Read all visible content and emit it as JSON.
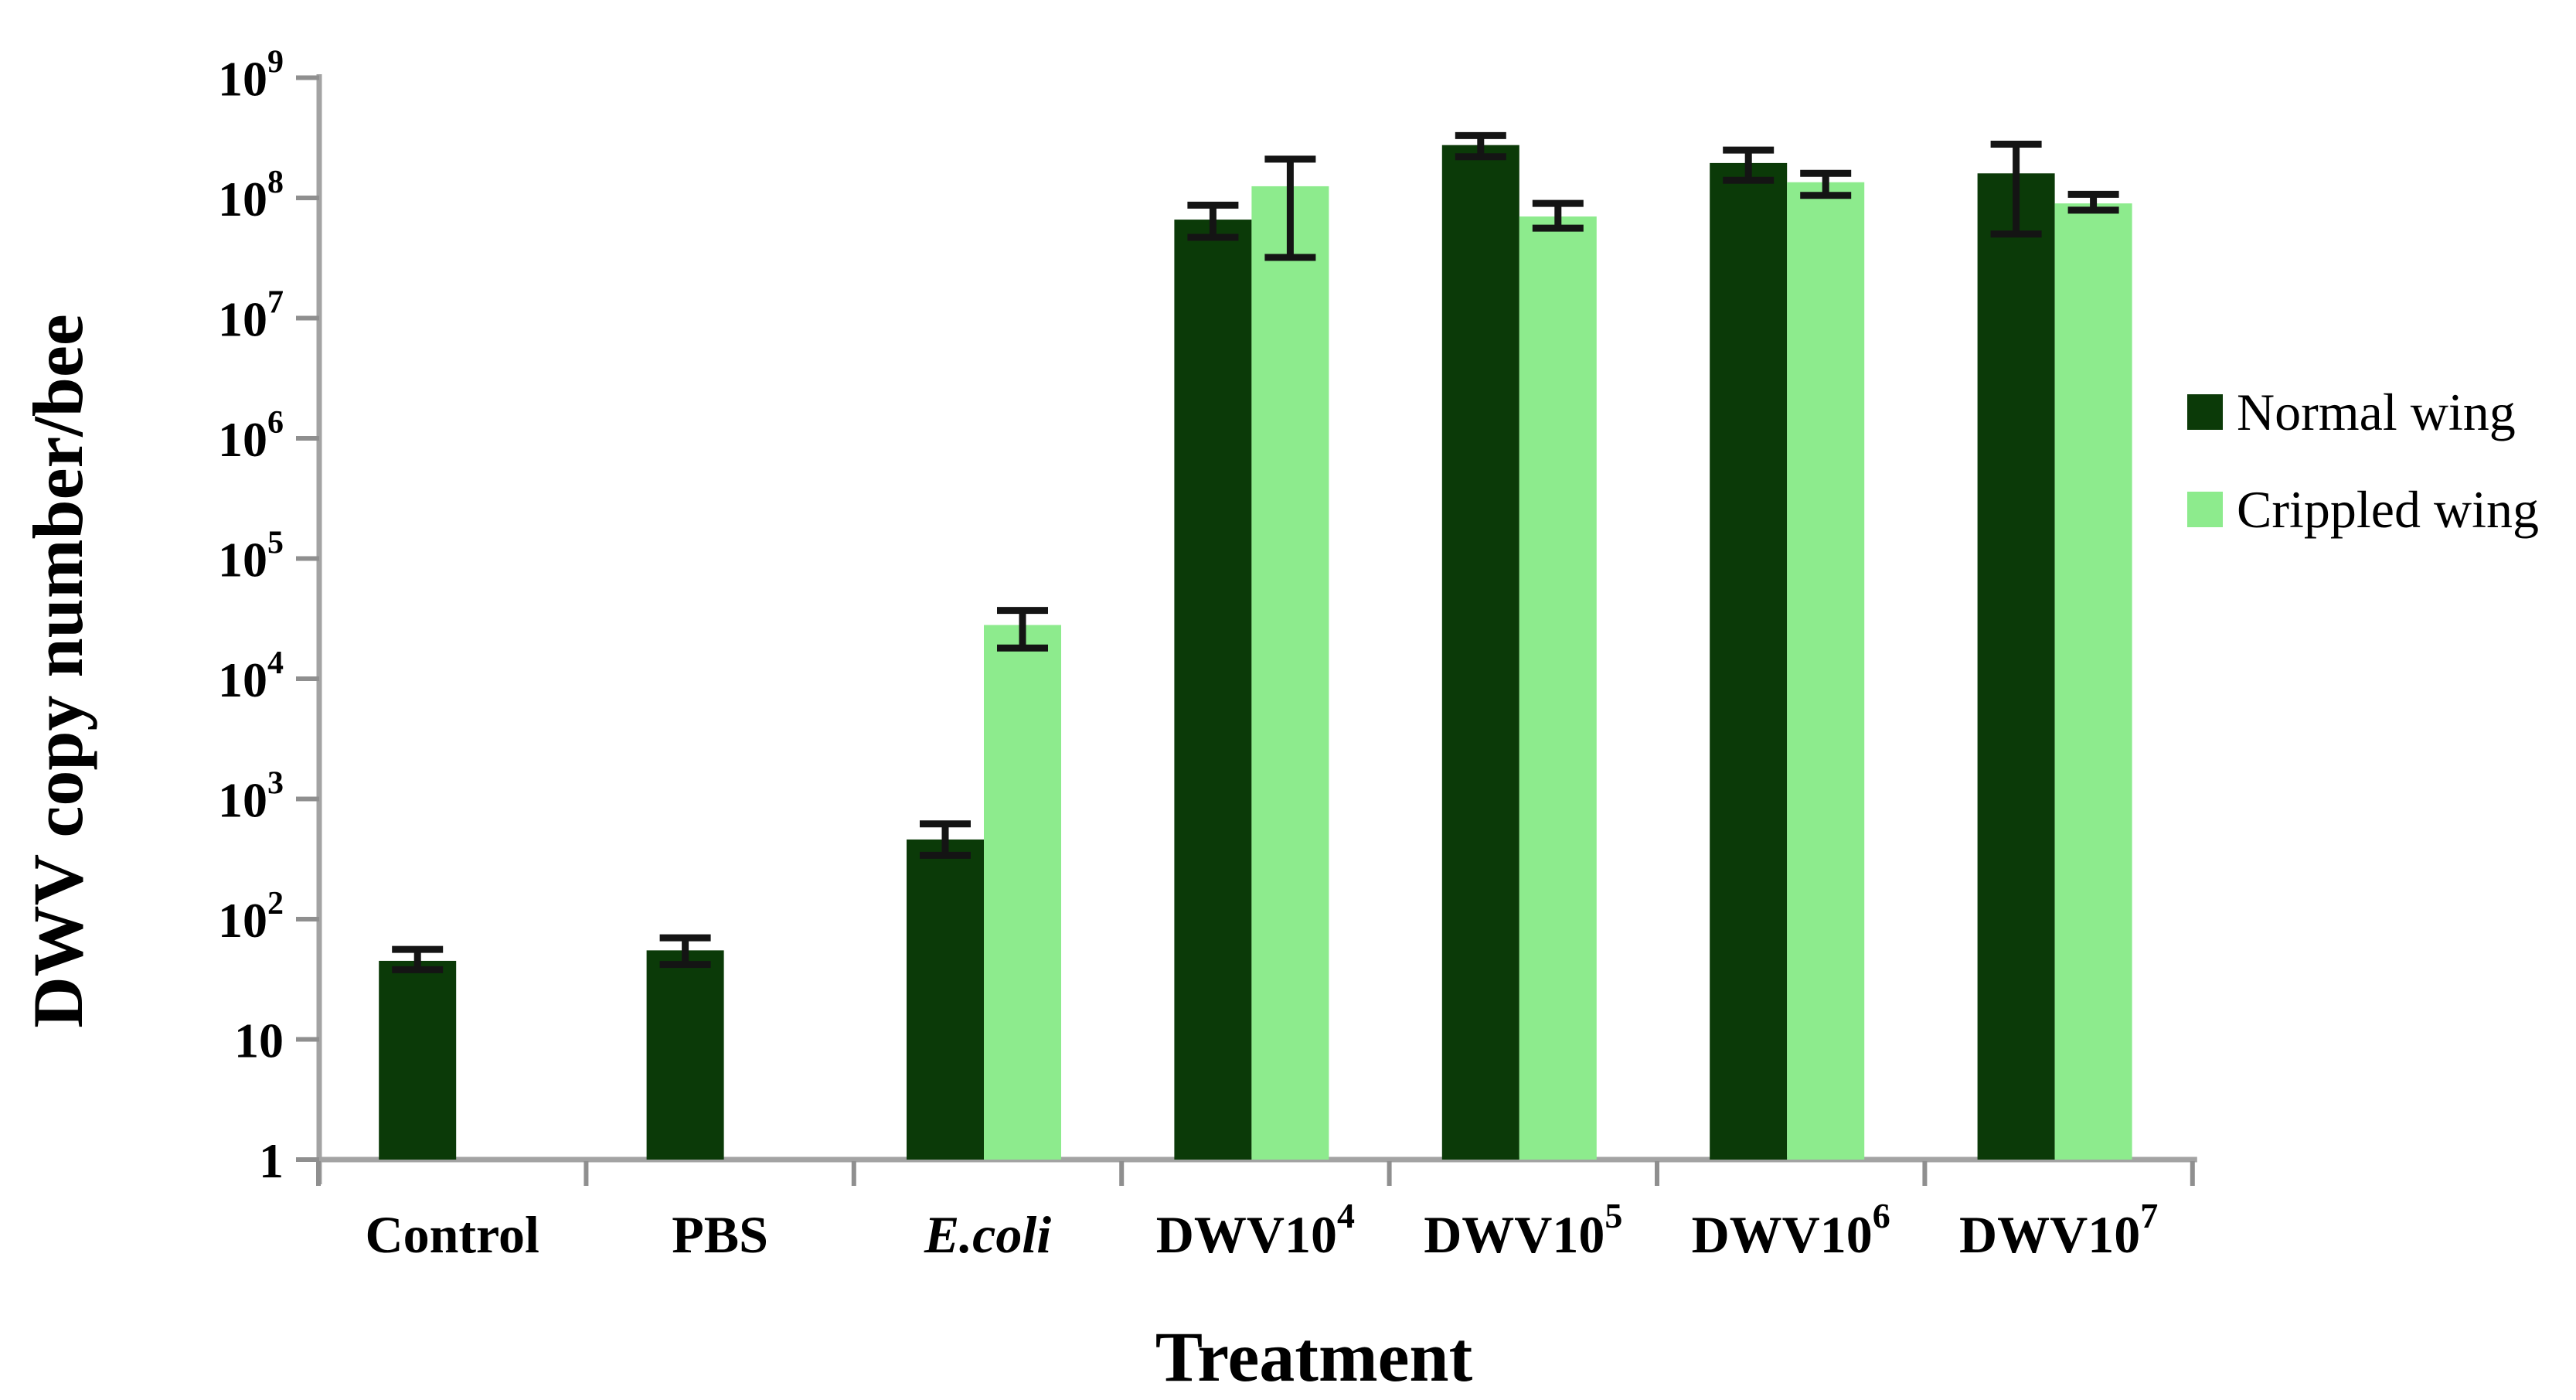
{
  "figure": {
    "background_color": "#ffffff",
    "y_axis_title": "DWV copy number/bee",
    "x_axis_title": "Treatment"
  },
  "chart_data": {
    "type": "bar",
    "scale": "log",
    "title": "",
    "xlabel": "Treatment",
    "ylabel": "DWV copy number/bee",
    "ylim": [
      1,
      1000000000
    ],
    "grid": false,
    "legend_position": "right",
    "axis_color": "#A3A3A3",
    "tick_color": "#8F8F8F",
    "error_bar_color": "#141414",
    "y_ticks": [
      {
        "label": "1"
      },
      {
        "label": "10"
      },
      {
        "label": "10",
        "sup": "2"
      },
      {
        "label": "10",
        "sup": "3"
      },
      {
        "label": "10",
        "sup": "4"
      },
      {
        "label": "10",
        "sup": "5"
      },
      {
        "label": "10",
        "sup": "6"
      },
      {
        "label": "10",
        "sup": "7"
      },
      {
        "label": "10",
        "sup": "8"
      },
      {
        "label": "10",
        "sup": "9"
      }
    ],
    "categories": [
      {
        "text": "Control"
      },
      {
        "text": "PBS"
      },
      {
        "text": "E.coli",
        "italic": true
      },
      {
        "text": "DWV10",
        "sup": "4"
      },
      {
        "text": "DWV10",
        "sup": "5"
      },
      {
        "text": "DWV10",
        "sup": "6"
      },
      {
        "text": "DWV10",
        "sup": "7"
      }
    ],
    "series": [
      {
        "name": "Normal wing",
        "color": "#0B3A08",
        "values": [
          45,
          55,
          460,
          66000000,
          275000000,
          195000000,
          160000000
        ],
        "err_lo": [
          38,
          42,
          340,
          47000000,
          220000000,
          140000000,
          50000000
        ],
        "err_hi": [
          56,
          70,
          620,
          87000000,
          330000000,
          250000000,
          280000000
        ]
      },
      {
        "name": "Crippled wing",
        "color": "#8DEB8D",
        "values": [
          null,
          null,
          28000,
          125000000,
          70000000,
          135000000,
          90000000
        ],
        "err_lo": [
          null,
          null,
          18000,
          32000000,
          56000000,
          105000000,
          79000000
        ],
        "err_hi": [
          null,
          null,
          37000,
          210000000,
          90000000,
          160000000,
          107000000
        ]
      }
    ]
  }
}
